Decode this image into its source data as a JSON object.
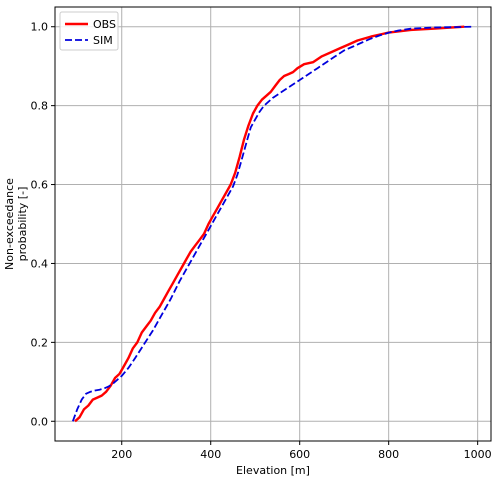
{
  "chart_data": {
    "type": "line",
    "xlabel": "Elevation [m]",
    "ylabel_lines": [
      "Non-exceedance",
      "probability [-]"
    ],
    "xlim": [
      50,
      1030
    ],
    "ylim": [
      -0.05,
      1.05
    ],
    "xticks": [
      200,
      400,
      600,
      800,
      1000
    ],
    "yticks": [
      0.0,
      0.2,
      0.4,
      0.6,
      0.8,
      1.0
    ],
    "xtick_labels": [
      "200",
      "400",
      "600",
      "800",
      "1000"
    ],
    "ytick_labels": [
      "0.0",
      "0.2",
      "0.4",
      "0.6",
      "0.8",
      "1.0"
    ],
    "grid": true,
    "legend_position": "top-left",
    "series": [
      {
        "name": "OBS",
        "color": "#ff0000",
        "style": "solid",
        "x": [
          95,
          105,
          115,
          125,
          135,
          145,
          155,
          165,
          175,
          185,
          195,
          205,
          215,
          225,
          235,
          245,
          255,
          265,
          275,
          285,
          295,
          305,
          315,
          325,
          335,
          345,
          355,
          365,
          375,
          385,
          395,
          405,
          415,
          425,
          435,
          445,
          455,
          465,
          475,
          485,
          495,
          505,
          515,
          525,
          535,
          545,
          555,
          565,
          575,
          585,
          595,
          610,
          630,
          650,
          670,
          690,
          710,
          730,
          760,
          800,
          850,
          900,
          970
        ],
        "y": [
          0.0,
          0.01,
          0.03,
          0.04,
          0.055,
          0.06,
          0.065,
          0.075,
          0.09,
          0.11,
          0.12,
          0.14,
          0.16,
          0.185,
          0.2,
          0.225,
          0.24,
          0.255,
          0.275,
          0.29,
          0.31,
          0.33,
          0.35,
          0.37,
          0.39,
          0.41,
          0.43,
          0.445,
          0.46,
          0.475,
          0.5,
          0.52,
          0.54,
          0.56,
          0.58,
          0.6,
          0.63,
          0.67,
          0.715,
          0.75,
          0.78,
          0.8,
          0.815,
          0.825,
          0.835,
          0.85,
          0.865,
          0.875,
          0.88,
          0.885,
          0.895,
          0.905,
          0.91,
          0.925,
          0.935,
          0.945,
          0.955,
          0.965,
          0.975,
          0.985,
          0.992,
          0.995,
          1.0
        ]
      },
      {
        "name": "SIM",
        "color": "#0000dd",
        "style": "dashed",
        "x": [
          90,
          100,
          110,
          120,
          130,
          140,
          150,
          160,
          170,
          180,
          190,
          200,
          215,
          230,
          250,
          270,
          290,
          310,
          330,
          350,
          370,
          390,
          410,
          430,
          450,
          460,
          470,
          480,
          490,
          500,
          510,
          520,
          540,
          560,
          580,
          600,
          620,
          640,
          660,
          680,
          700,
          720,
          740,
          760,
          780,
          800,
          820,
          850,
          900,
          950,
          990
        ],
        "y": [
          0.0,
          0.03,
          0.055,
          0.07,
          0.075,
          0.078,
          0.08,
          0.083,
          0.088,
          0.095,
          0.105,
          0.115,
          0.135,
          0.16,
          0.195,
          0.23,
          0.27,
          0.31,
          0.355,
          0.395,
          0.435,
          0.475,
          0.515,
          0.555,
          0.595,
          0.625,
          0.665,
          0.705,
          0.745,
          0.765,
          0.785,
          0.8,
          0.82,
          0.835,
          0.85,
          0.865,
          0.88,
          0.895,
          0.91,
          0.925,
          0.94,
          0.95,
          0.96,
          0.97,
          0.978,
          0.985,
          0.99,
          0.995,
          0.998,
          0.999,
          1.0
        ]
      }
    ]
  }
}
